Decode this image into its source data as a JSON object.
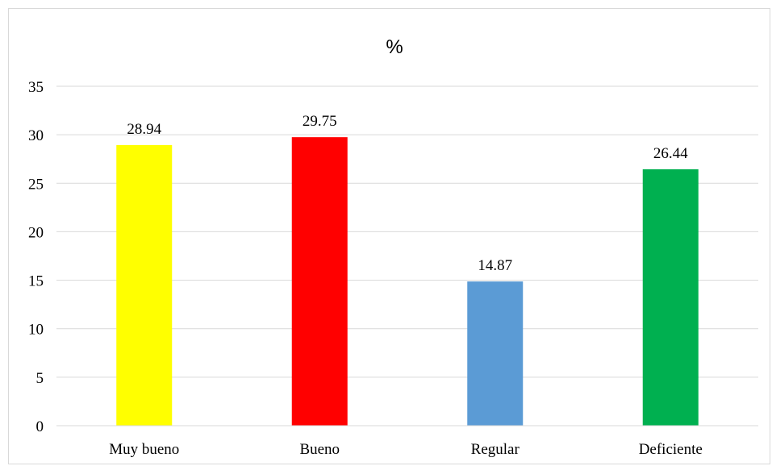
{
  "chart_data": {
    "type": "bar",
    "title": "%",
    "xlabel": "",
    "ylabel": "",
    "categories": [
      "Muy bueno",
      "Bueno",
      "Regular",
      "Deficiente"
    ],
    "values": [
      28.94,
      29.75,
      14.87,
      26.44
    ],
    "data_labels": [
      "28.94",
      "29.75",
      "14.87",
      "26.44"
    ],
    "colors": [
      "#FFFF00",
      "#FF0000",
      "#5B9BD5",
      "#00B050"
    ],
    "ylim": [
      0,
      35
    ],
    "yticks": [
      0,
      5,
      10,
      15,
      20,
      25,
      30,
      35
    ],
    "ytick_labels": [
      "0",
      "5",
      "10",
      "15",
      "20",
      "25",
      "30",
      "35"
    ],
    "grid": true,
    "legend": "none"
  }
}
